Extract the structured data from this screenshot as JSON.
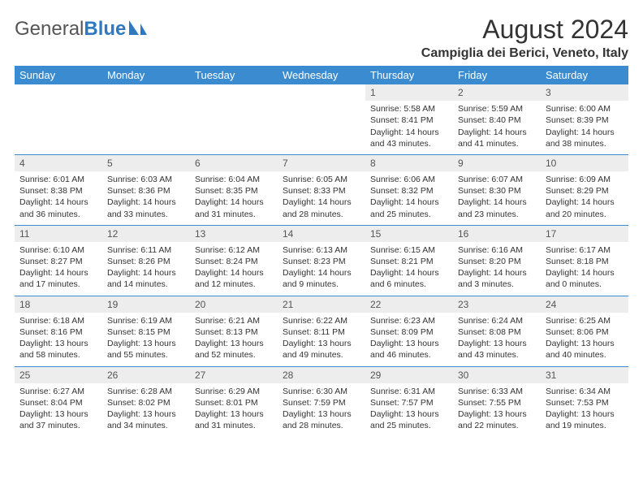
{
  "brand": {
    "part1": "General",
    "part2": "Blue"
  },
  "title": "August 2024",
  "location": "Campiglia dei Berici, Veneto, Italy",
  "colors": {
    "header_bg": "#3b8bd0",
    "header_text": "#ffffff",
    "daynum_bg": "#ededed",
    "row_border": "#3b8bd0",
    "body_text": "#333333",
    "logo_gray": "#555555",
    "logo_blue": "#2f79c2",
    "page_bg": "#ffffff"
  },
  "typography": {
    "title_fontsize": 32,
    "location_fontsize": 16,
    "header_fontsize": 13,
    "daynum_fontsize": 12,
    "cell_fontsize": 10.5
  },
  "weekdays": [
    "Sunday",
    "Monday",
    "Tuesday",
    "Wednesday",
    "Thursday",
    "Friday",
    "Saturday"
  ],
  "weeks": [
    {
      "days": [
        null,
        null,
        null,
        null,
        {
          "n": "1",
          "sr": "Sunrise: 5:58 AM",
          "ss": "Sunset: 8:41 PM",
          "d1": "Daylight: 14 hours",
          "d2": "and 43 minutes."
        },
        {
          "n": "2",
          "sr": "Sunrise: 5:59 AM",
          "ss": "Sunset: 8:40 PM",
          "d1": "Daylight: 14 hours",
          "d2": "and 41 minutes."
        },
        {
          "n": "3",
          "sr": "Sunrise: 6:00 AM",
          "ss": "Sunset: 8:39 PM",
          "d1": "Daylight: 14 hours",
          "d2": "and 38 minutes."
        }
      ]
    },
    {
      "days": [
        {
          "n": "4",
          "sr": "Sunrise: 6:01 AM",
          "ss": "Sunset: 8:38 PM",
          "d1": "Daylight: 14 hours",
          "d2": "and 36 minutes."
        },
        {
          "n": "5",
          "sr": "Sunrise: 6:03 AM",
          "ss": "Sunset: 8:36 PM",
          "d1": "Daylight: 14 hours",
          "d2": "and 33 minutes."
        },
        {
          "n": "6",
          "sr": "Sunrise: 6:04 AM",
          "ss": "Sunset: 8:35 PM",
          "d1": "Daylight: 14 hours",
          "d2": "and 31 minutes."
        },
        {
          "n": "7",
          "sr": "Sunrise: 6:05 AM",
          "ss": "Sunset: 8:33 PM",
          "d1": "Daylight: 14 hours",
          "d2": "and 28 minutes."
        },
        {
          "n": "8",
          "sr": "Sunrise: 6:06 AM",
          "ss": "Sunset: 8:32 PM",
          "d1": "Daylight: 14 hours",
          "d2": "and 25 minutes."
        },
        {
          "n": "9",
          "sr": "Sunrise: 6:07 AM",
          "ss": "Sunset: 8:30 PM",
          "d1": "Daylight: 14 hours",
          "d2": "and 23 minutes."
        },
        {
          "n": "10",
          "sr": "Sunrise: 6:09 AM",
          "ss": "Sunset: 8:29 PM",
          "d1": "Daylight: 14 hours",
          "d2": "and 20 minutes."
        }
      ]
    },
    {
      "days": [
        {
          "n": "11",
          "sr": "Sunrise: 6:10 AM",
          "ss": "Sunset: 8:27 PM",
          "d1": "Daylight: 14 hours",
          "d2": "and 17 minutes."
        },
        {
          "n": "12",
          "sr": "Sunrise: 6:11 AM",
          "ss": "Sunset: 8:26 PM",
          "d1": "Daylight: 14 hours",
          "d2": "and 14 minutes."
        },
        {
          "n": "13",
          "sr": "Sunrise: 6:12 AM",
          "ss": "Sunset: 8:24 PM",
          "d1": "Daylight: 14 hours",
          "d2": "and 12 minutes."
        },
        {
          "n": "14",
          "sr": "Sunrise: 6:13 AM",
          "ss": "Sunset: 8:23 PM",
          "d1": "Daylight: 14 hours",
          "d2": "and 9 minutes."
        },
        {
          "n": "15",
          "sr": "Sunrise: 6:15 AM",
          "ss": "Sunset: 8:21 PM",
          "d1": "Daylight: 14 hours",
          "d2": "and 6 minutes."
        },
        {
          "n": "16",
          "sr": "Sunrise: 6:16 AM",
          "ss": "Sunset: 8:20 PM",
          "d1": "Daylight: 14 hours",
          "d2": "and 3 minutes."
        },
        {
          "n": "17",
          "sr": "Sunrise: 6:17 AM",
          "ss": "Sunset: 8:18 PM",
          "d1": "Daylight: 14 hours",
          "d2": "and 0 minutes."
        }
      ]
    },
    {
      "days": [
        {
          "n": "18",
          "sr": "Sunrise: 6:18 AM",
          "ss": "Sunset: 8:16 PM",
          "d1": "Daylight: 13 hours",
          "d2": "and 58 minutes."
        },
        {
          "n": "19",
          "sr": "Sunrise: 6:19 AM",
          "ss": "Sunset: 8:15 PM",
          "d1": "Daylight: 13 hours",
          "d2": "and 55 minutes."
        },
        {
          "n": "20",
          "sr": "Sunrise: 6:21 AM",
          "ss": "Sunset: 8:13 PM",
          "d1": "Daylight: 13 hours",
          "d2": "and 52 minutes."
        },
        {
          "n": "21",
          "sr": "Sunrise: 6:22 AM",
          "ss": "Sunset: 8:11 PM",
          "d1": "Daylight: 13 hours",
          "d2": "and 49 minutes."
        },
        {
          "n": "22",
          "sr": "Sunrise: 6:23 AM",
          "ss": "Sunset: 8:09 PM",
          "d1": "Daylight: 13 hours",
          "d2": "and 46 minutes."
        },
        {
          "n": "23",
          "sr": "Sunrise: 6:24 AM",
          "ss": "Sunset: 8:08 PM",
          "d1": "Daylight: 13 hours",
          "d2": "and 43 minutes."
        },
        {
          "n": "24",
          "sr": "Sunrise: 6:25 AM",
          "ss": "Sunset: 8:06 PM",
          "d1": "Daylight: 13 hours",
          "d2": "and 40 minutes."
        }
      ]
    },
    {
      "days": [
        {
          "n": "25",
          "sr": "Sunrise: 6:27 AM",
          "ss": "Sunset: 8:04 PM",
          "d1": "Daylight: 13 hours",
          "d2": "and 37 minutes."
        },
        {
          "n": "26",
          "sr": "Sunrise: 6:28 AM",
          "ss": "Sunset: 8:02 PM",
          "d1": "Daylight: 13 hours",
          "d2": "and 34 minutes."
        },
        {
          "n": "27",
          "sr": "Sunrise: 6:29 AM",
          "ss": "Sunset: 8:01 PM",
          "d1": "Daylight: 13 hours",
          "d2": "and 31 minutes."
        },
        {
          "n": "28",
          "sr": "Sunrise: 6:30 AM",
          "ss": "Sunset: 7:59 PM",
          "d1": "Daylight: 13 hours",
          "d2": "and 28 minutes."
        },
        {
          "n": "29",
          "sr": "Sunrise: 6:31 AM",
          "ss": "Sunset: 7:57 PM",
          "d1": "Daylight: 13 hours",
          "d2": "and 25 minutes."
        },
        {
          "n": "30",
          "sr": "Sunrise: 6:33 AM",
          "ss": "Sunset: 7:55 PM",
          "d1": "Daylight: 13 hours",
          "d2": "and 22 minutes."
        },
        {
          "n": "31",
          "sr": "Sunrise: 6:34 AM",
          "ss": "Sunset: 7:53 PM",
          "d1": "Daylight: 13 hours",
          "d2": "and 19 minutes."
        }
      ]
    }
  ]
}
